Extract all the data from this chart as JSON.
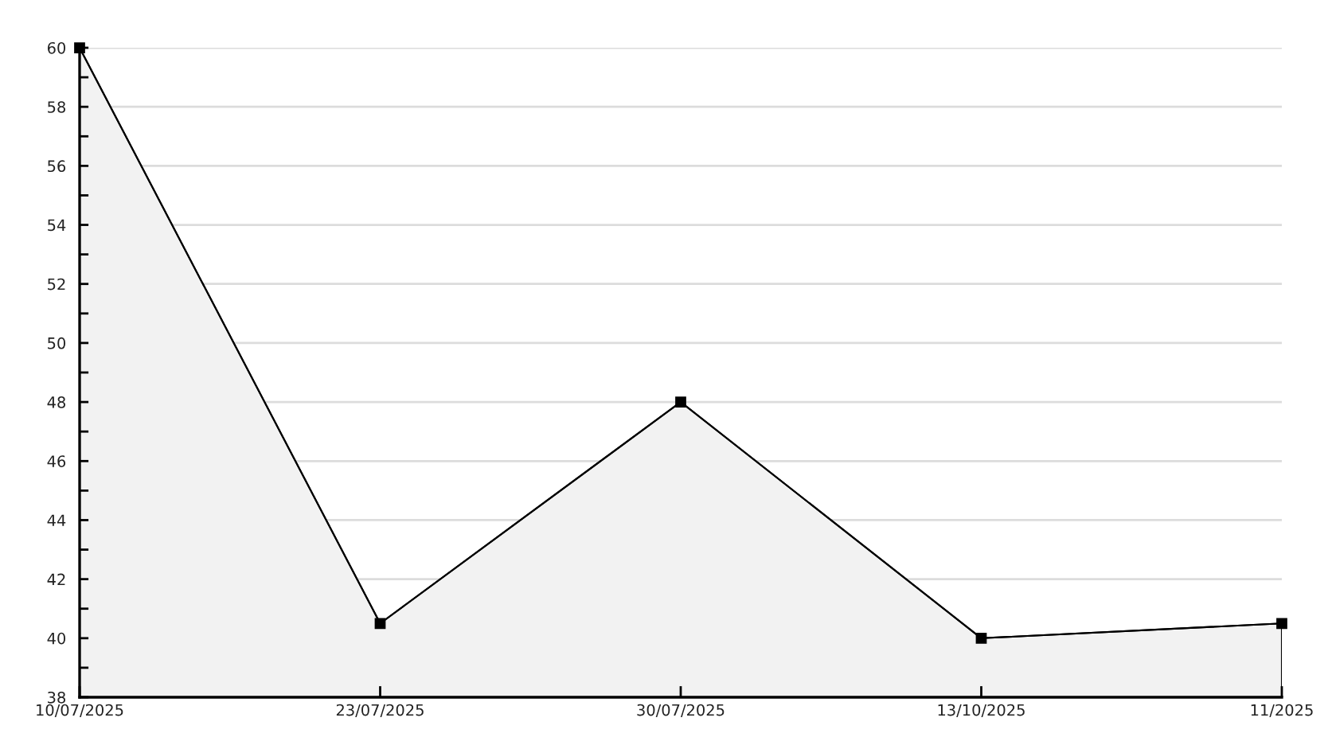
{
  "chart_data": {
    "type": "area",
    "categories": [
      "10/07/2025",
      "23/07/2025",
      "30/07/2025",
      "13/10/2025",
      "11/2025"
    ],
    "series": [
      {
        "color": "#f2f2f2",
        "values": [
          60,
          40.5,
          48,
          40,
          40.5
        ]
      }
    ],
    "ylim": [
      38,
      60
    ],
    "yticks": [
      38,
      {
        "value": 39,
        "label": null
      },
      40,
      {
        "value": 41,
        "label": null
      },
      42,
      {
        "value": 43,
        "label": null
      },
      44,
      {
        "value": 45,
        "label": null
      },
      46,
      {
        "value": 47,
        "label": null
      },
      48,
      {
        "value": 49,
        "label": null
      },
      50,
      {
        "value": 51,
        "label": null
      },
      52,
      {
        "value": 53,
        "label": null
      },
      54,
      {
        "value": 55,
        "label": null
      },
      56,
      {
        "value": 57,
        "label": null
      },
      58,
      {
        "value": 59,
        "label": null
      },
      60
    ],
    "grid": "y",
    "marker": "square",
    "line_style": "solid"
  }
}
